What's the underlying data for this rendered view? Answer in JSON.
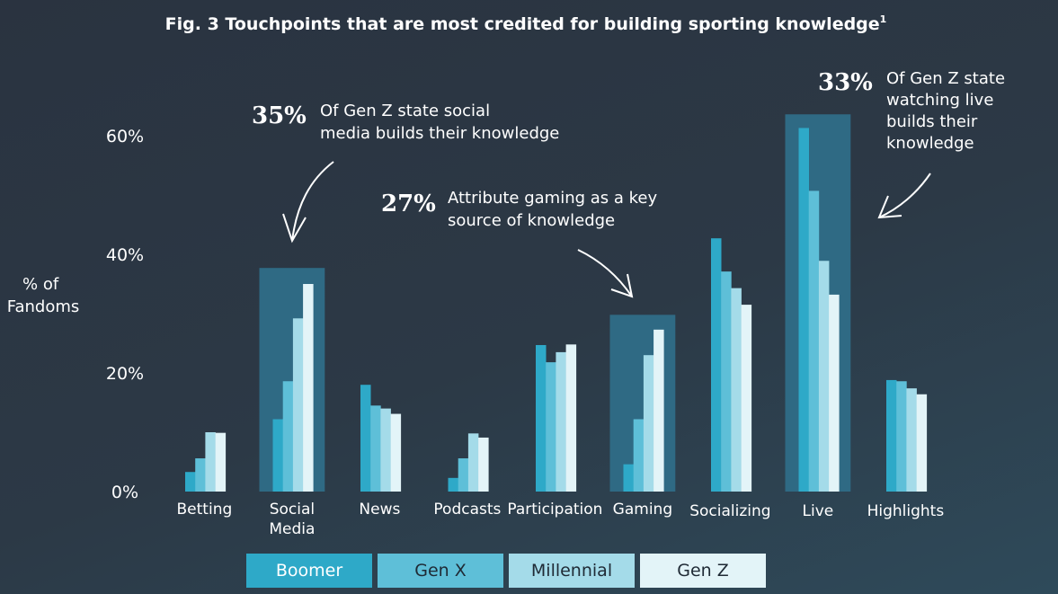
{
  "chart_data": {
    "type": "bar",
    "title": "Fig. 3 Touchpoints that are most credited for building sporting knowledge",
    "title_superscript": "1",
    "ylabel_lines": [
      "% of",
      "Fandoms"
    ],
    "ylim": [
      0,
      60
    ],
    "yticks": [
      0,
      20,
      40,
      60
    ],
    "ytick_labels": [
      "0%",
      "20%",
      "40%",
      "60%"
    ],
    "categories": [
      [
        "Betting"
      ],
      [
        "Social",
        "Media"
      ],
      [
        "News"
      ],
      [
        "Podcasts"
      ],
      [
        "Participation"
      ],
      [
        "Gaming"
      ],
      [
        "Socializing"
      ],
      [
        "Live"
      ],
      [
        "Highlights"
      ]
    ],
    "series": [
      {
        "name": "Boomer",
        "color": "#2ea9c8",
        "values": [
          3.3,
          12.2,
          18.0,
          2.3,
          24.7,
          4.6,
          42.7,
          61.3,
          18.8
        ]
      },
      {
        "name": "Gen X",
        "color": "#5ebfd8",
        "values": [
          5.6,
          18.6,
          14.5,
          5.6,
          21.8,
          12.2,
          37.1,
          50.7,
          18.6
        ]
      },
      {
        "name": "Millennial",
        "color": "#a4dbe9",
        "values": [
          10.0,
          29.2,
          14.0,
          9.8,
          23.5,
          23.0,
          34.3,
          38.9,
          17.4
        ]
      },
      {
        "name": "Gen Z",
        "color": "#e3f4f8",
        "values": [
          9.9,
          35.0,
          13.1,
          9.1,
          24.8,
          27.3,
          31.5,
          33.2,
          16.4
        ]
      }
    ],
    "highlighted_categories": [
      1,
      5,
      7
    ],
    "highlight_values": [
      37.7,
      29.8,
      63.6
    ],
    "highlight_color": "#2f6a84",
    "annotations": [
      {
        "big": "35%",
        "lines": [
          "Of Gen Z state social",
          "media builds their knowledge"
        ]
      },
      {
        "big": "27%",
        "lines": [
          "Attribute gaming as a key",
          "source of knowledge"
        ]
      },
      {
        "big": "33%",
        "lines": [
          "Of Gen Z state",
          "watching live",
          "builds their",
          "knowledge"
        ]
      }
    ]
  },
  "legend": [
    {
      "label": "Boomer",
      "color": "#2ea9c8"
    },
    {
      "label": "Gen X",
      "color": "#5ebfd8"
    },
    {
      "label": "Millennial",
      "color": "#a4dbe9"
    },
    {
      "label": "Gen Z",
      "color": "#e3f4f8"
    }
  ]
}
